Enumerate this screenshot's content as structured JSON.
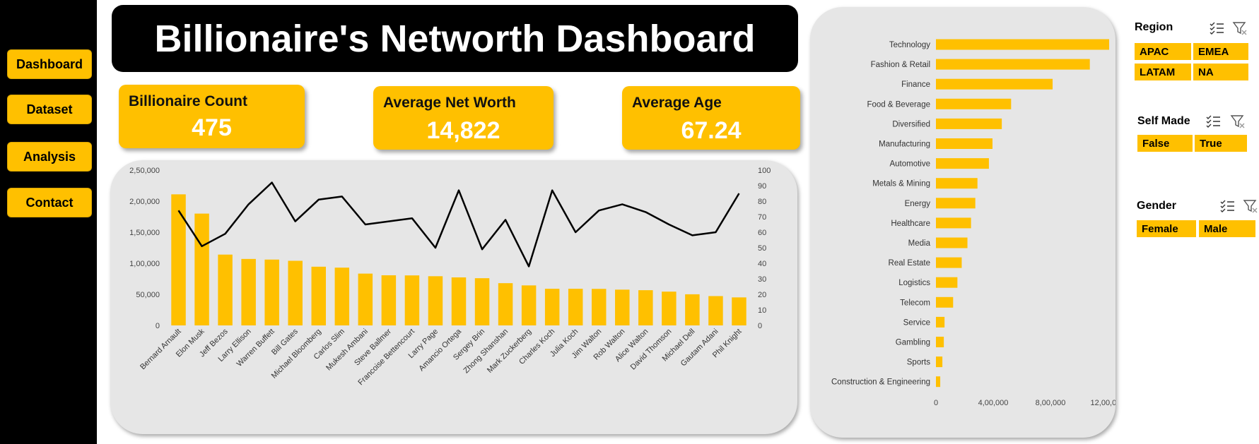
{
  "nav": {
    "items": [
      {
        "label": "Dashboard"
      },
      {
        "label": "Dataset"
      },
      {
        "label": "Analysis"
      },
      {
        "label": "Contact"
      }
    ]
  },
  "header": {
    "title": "Billionaire's Networth Dashboard"
  },
  "kpis": {
    "count_label": "Billionaire Count",
    "count_value": "475",
    "networth_label": "Average Net Worth",
    "networth_value": "14,822",
    "age_label": "Average Age",
    "age_value": "67.24"
  },
  "slicers": {
    "region": {
      "title": "Region",
      "options": [
        "APAC",
        "EMEA",
        "LATAM",
        "NA"
      ]
    },
    "selfmade": {
      "title": "Self Made",
      "options": [
        "False",
        "True"
      ]
    },
    "gender": {
      "title": "Gender",
      "options": [
        "Female",
        "Male"
      ]
    }
  },
  "colors": {
    "accent": "#FFC000",
    "line": "#000000",
    "panel": "#E6E6E6"
  },
  "chart_data": [
    {
      "type": "bar",
      "categories": [
        "Bernard Arnault",
        "Elon Musk",
        "Jeff Bezos",
        "Larry Ellison",
        "Warren Buffett",
        "Bill Gates",
        "Michael Bloomberg",
        "Carlos Slim",
        "Mukesh Ambani",
        "Steve Ballmer",
        "Francoise Bettencourt",
        "Larry Page",
        "Amancio Ortega",
        "Sergey Brin",
        "Zhong Shanshan",
        "Mark Zuckerberg",
        "Charles Koch",
        "Julia Koch",
        "Jim Walton",
        "Rob Walton",
        "Alice Walton",
        "David Thomson",
        "Michael Dell",
        "Gautam Adani",
        "Phil Knight"
      ],
      "series": [
        {
          "type": "bar",
          "values": [
            211000,
            180000,
            114000,
            107000,
            106000,
            104000,
            94500,
            93000,
            83400,
            80700,
            80500,
            79200,
            77300,
            76000,
            68000,
            64400,
            59000,
            59000,
            58800,
            57600,
            56700,
            54400,
            50100,
            47200,
            45100
          ]
        },
        {
          "type": "line",
          "axis": "secondary",
          "values": [
            74,
            51,
            59,
            78,
            92,
            67,
            81,
            83,
            65,
            67,
            69,
            50,
            87,
            49,
            68,
            38,
            87,
            60,
            74,
            78,
            73,
            65,
            58,
            60,
            85
          ]
        }
      ],
      "y_ticks": [
        "0",
        "50,000",
        "1,00,000",
        "1,50,000",
        "2,00,000",
        "2,50,000"
      ],
      "ylim": [
        0,
        250000
      ],
      "y2_ticks": [
        "0",
        "10",
        "20",
        "30",
        "40",
        "50",
        "60",
        "70",
        "80",
        "90",
        "100"
      ],
      "y2lim": [
        0,
        100
      ],
      "grid": false
    },
    {
      "type": "bar",
      "orientation": "horizontal",
      "categories": [
        "Technology",
        "Fashion & Retail",
        "Finance",
        "Food & Beverage",
        "Diversified",
        "Manufacturing",
        "Automotive",
        "Metals & Mining",
        "Energy",
        "Healthcare",
        "Media",
        "Real Estate",
        "Logistics",
        "Telecom",
        "Service",
        "Gambling",
        "Sports",
        "Construction & Engineering"
      ],
      "values": [
        1210000,
        1075000,
        815000,
        525000,
        460000,
        395000,
        370000,
        290000,
        275000,
        245000,
        220000,
        180000,
        150000,
        120000,
        60000,
        55000,
        45000,
        30000
      ],
      "x_ticks": [
        "0",
        "4,00,000",
        "8,00,000",
        "12,00,000"
      ],
      "xlim": [
        0,
        1200000
      ],
      "grid": false
    }
  ]
}
